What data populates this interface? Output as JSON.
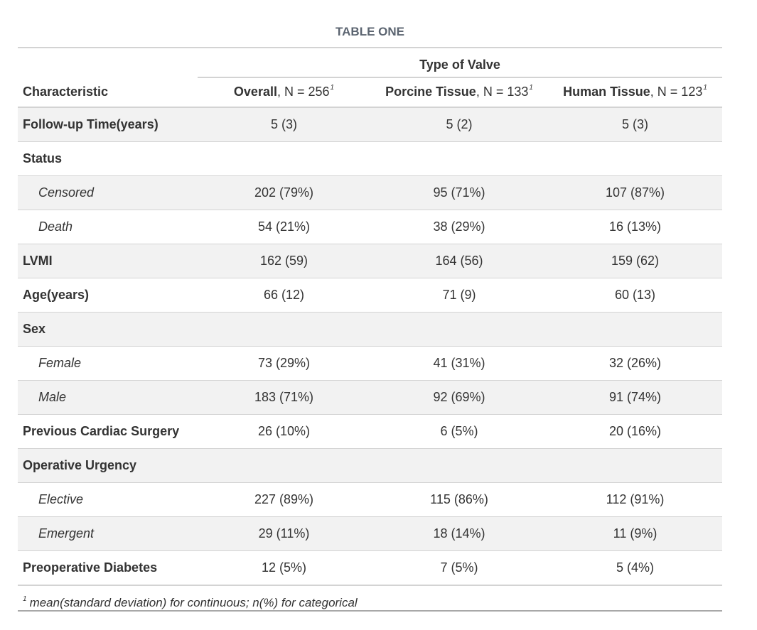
{
  "title": "TABLE ONE",
  "spanner": "Type of Valve",
  "header": {
    "characteristic": "Characteristic",
    "col1_name": "Overall",
    "col1_n": ", N = 256",
    "col2_name": "Porcine Tissue",
    "col2_n": ", N = 133",
    "col3_name": "Human Tissue",
    "col3_n": ", N = 123",
    "footnote_mark": "1"
  },
  "rows": [
    {
      "label": "Follow-up Time(years)",
      "v1": "5 (3)",
      "v2": "5 (2)",
      "v3": "5 (3)"
    },
    {
      "label": "Status",
      "v1": "",
      "v2": "",
      "v3": ""
    },
    {
      "label": "Censored",
      "v1": "202 (79%)",
      "v2": "95 (71%)",
      "v3": "107 (87%)"
    },
    {
      "label": "Death",
      "v1": "54 (21%)",
      "v2": "38 (29%)",
      "v3": "16 (13%)"
    },
    {
      "label": "LVMI",
      "v1": "162 (59)",
      "v2": "164 (56)",
      "v3": "159 (62)"
    },
    {
      "label": "Age(years)",
      "v1": "66 (12)",
      "v2": "71 (9)",
      "v3": "60 (13)"
    },
    {
      "label": "Sex",
      "v1": "",
      "v2": "",
      "v3": ""
    },
    {
      "label": "Female",
      "v1": "73 (29%)",
      "v2": "41 (31%)",
      "v3": "32 (26%)"
    },
    {
      "label": "Male",
      "v1": "183 (71%)",
      "v2": "92 (69%)",
      "v3": "91 (74%)"
    },
    {
      "label": "Previous Cardiac Surgery",
      "v1": "26 (10%)",
      "v2": "6 (5%)",
      "v3": "20 (16%)"
    },
    {
      "label": "Operative Urgency",
      "v1": "",
      "v2": "",
      "v3": ""
    },
    {
      "label": "Elective",
      "v1": "227 (89%)",
      "v2": "115 (86%)",
      "v3": "112 (91%)"
    },
    {
      "label": "Emergent",
      "v1": "29 (11%)",
      "v2": "18 (14%)",
      "v3": "11 (9%)"
    },
    {
      "label": "Preoperative Diabetes",
      "v1": "12 (5%)",
      "v2": "7 (5%)",
      "v3": "5 (4%)"
    }
  ],
  "footnote": {
    "mark": "1",
    "text": "mean(standard deviation) for continuous; n(%) for categorical"
  }
}
